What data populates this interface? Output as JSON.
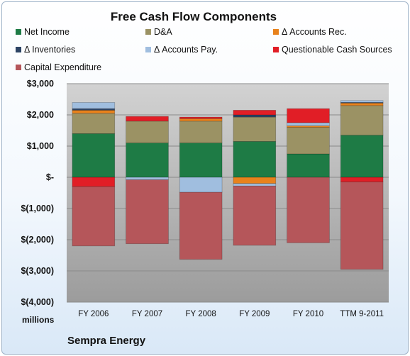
{
  "chart_data": {
    "type": "bar",
    "stacked": true,
    "title": "Free Cash Flow Components",
    "units_label": "millions",
    "company": "Sempra Energy",
    "categories": [
      "FY 2006",
      "FY 2007",
      "FY 2008",
      "FY 2009",
      "FY 2010",
      "TTM 9-2011"
    ],
    "ylim": [
      -4000,
      3000
    ],
    "yticks": [
      3000,
      2000,
      1000,
      0,
      -1000,
      -2000,
      -3000,
      -4000
    ],
    "ytick_labels": [
      "$3,000",
      "$2,000",
      "$1,000",
      "$-",
      "$(1,000)",
      "$(2,000)",
      "$(3,000)",
      "$(4,000)"
    ],
    "grid": true,
    "legend_position": "top",
    "series": [
      {
        "name": "Net Income",
        "color": "#1e7b45",
        "values": [
          1400,
          1100,
          1100,
          1150,
          750,
          1350
        ]
      },
      {
        "name": "D&A",
        "color": "#9b9264",
        "values": [
          650,
          700,
          700,
          780,
          850,
          950
        ]
      },
      {
        "name": "Δ Accounts Rec.",
        "color": "#e8821c",
        "values": [
          100,
          0,
          80,
          -200,
          50,
          80
        ]
      },
      {
        "name": "Δ Inventories",
        "color": "#2d4464",
        "values": [
          50,
          0,
          0,
          70,
          0,
          20
        ]
      },
      {
        "name": "Δ Accounts Pay.",
        "color": "#a0bedf",
        "values": [
          200,
          -80,
          -480,
          -80,
          100,
          60
        ]
      },
      {
        "name": "Questionable Cash Sources",
        "color": "#e11e26",
        "values": [
          -300,
          150,
          50,
          150,
          450,
          -150
        ]
      },
      {
        "name": "Capital Expenditure",
        "color": "#b5565a",
        "values": [
          -1900,
          -2050,
          -2150,
          -1900,
          -2100,
          -2800
        ]
      }
    ]
  }
}
